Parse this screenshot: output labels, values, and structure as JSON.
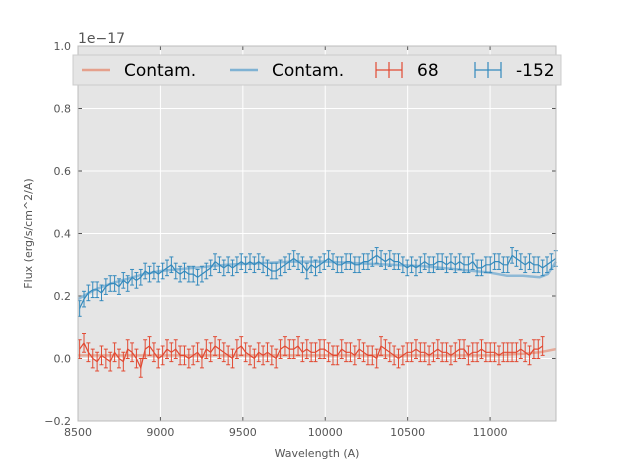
{
  "chart_data": {
    "type": "line",
    "title": "",
    "xlabel": "Wavelength (A)",
    "ylabel": "Flux (erg/s/cm^2/A)",
    "y_offset_label": "1e−17",
    "xlim": [
      8500,
      11400
    ],
    "ylim": [
      -0.2,
      1.0
    ],
    "xticks": [
      8500,
      9000,
      9500,
      10000,
      10500,
      11000
    ],
    "xtick_labels": [
      "8500",
      "9000",
      "9500",
      "10000",
      "10500",
      "11000"
    ],
    "yticks": [
      -0.2,
      0.0,
      0.2,
      0.4,
      0.6,
      0.8,
      1.0
    ],
    "ytick_labels": [
      "−0.2",
      "0.0",
      "0.2",
      "0.4",
      "0.6",
      "0.8",
      "1.0"
    ],
    "grid": true,
    "legend_position": "top",
    "legend": [
      {
        "label": "Contam.",
        "kind": "line",
        "color": "#e5a08c"
      },
      {
        "label": "Contam.",
        "kind": "line",
        "color": "#7fb2d3"
      },
      {
        "label": "68",
        "kind": "errorbar",
        "color": "#e24a33"
      },
      {
        "label": "-152",
        "kind": "errorbar",
        "color": "#348abd"
      }
    ],
    "contam_red": {
      "x": [
        8500,
        8700,
        9000,
        9500,
        10000,
        10500,
        11000,
        11200,
        11300,
        11400
      ],
      "y": [
        0.01,
        0.01,
        0.01,
        0.01,
        0.01,
        0.01,
        0.01,
        0.015,
        0.02,
        0.03
      ]
    },
    "contam_blue": {
      "x": [
        8500,
        8600,
        8700,
        8800,
        8900,
        9000,
        9200,
        9400,
        9600,
        9800,
        10000,
        10200,
        10400,
        10600,
        10800,
        11000,
        11100,
        11200,
        11300,
        11350,
        11400
      ],
      "y": [
        0.19,
        0.22,
        0.24,
        0.255,
        0.27,
        0.28,
        0.29,
        0.3,
        0.305,
        0.31,
        0.31,
        0.305,
        0.3,
        0.295,
        0.285,
        0.275,
        0.265,
        0.265,
        0.26,
        0.27,
        0.31
      ]
    },
    "series_red": {
      "name": "68",
      "x_start": 8510,
      "x_step": 26.5,
      "y": [
        0.03,
        0.05,
        0.02,
        0.0,
        -0.01,
        0.01,
        0.0,
        -0.01,
        0.02,
        0.0,
        -0.01,
        0.03,
        0.02,
        0.0,
        -0.03,
        0.03,
        0.04,
        0.02,
        0.0,
        0.01,
        0.03,
        0.02,
        0.03,
        0.01,
        0.01,
        0.0,
        0.01,
        0.02,
        0.0,
        0.03,
        0.02,
        0.04,
        0.03,
        0.02,
        0.01,
        0.0,
        0.03,
        0.04,
        0.02,
        0.01,
        0.0,
        0.02,
        0.01,
        0.02,
        0.01,
        0.0,
        0.03,
        0.04,
        0.03,
        0.03,
        0.04,
        0.02,
        0.03,
        0.02,
        0.02,
        0.03,
        0.03,
        0.02,
        0.01,
        0.01,
        0.03,
        0.02,
        0.02,
        0.01,
        0.03,
        0.02,
        0.01,
        0.01,
        0.0,
        0.04,
        0.03,
        0.02,
        0.01,
        0.0,
        0.01,
        0.02,
        0.02,
        0.03,
        0.02,
        0.02,
        0.01,
        0.02,
        0.03,
        0.02,
        0.02,
        0.01,
        0.02,
        0.03,
        0.03,
        0.01,
        0.02,
        0.02,
        0.03,
        0.02,
        0.02,
        0.02,
        0.01,
        0.02,
        0.02,
        0.02,
        0.02,
        0.03,
        0.02,
        0.01,
        0.03,
        0.03,
        0.04
      ],
      "err": 0.03
    },
    "series_blue": {
      "name": "-152",
      "x_start": 8510,
      "x_step": 26.5,
      "y": [
        0.16,
        0.19,
        0.21,
        0.22,
        0.22,
        0.21,
        0.23,
        0.24,
        0.24,
        0.23,
        0.25,
        0.24,
        0.26,
        0.25,
        0.26,
        0.28,
        0.27,
        0.28,
        0.27,
        0.28,
        0.29,
        0.3,
        0.28,
        0.27,
        0.28,
        0.27,
        0.27,
        0.26,
        0.27,
        0.28,
        0.29,
        0.31,
        0.3,
        0.29,
        0.3,
        0.29,
        0.3,
        0.31,
        0.3,
        0.31,
        0.3,
        0.31,
        0.3,
        0.29,
        0.28,
        0.28,
        0.29,
        0.3,
        0.31,
        0.32,
        0.31,
        0.3,
        0.28,
        0.3,
        0.29,
        0.3,
        0.31,
        0.32,
        0.31,
        0.3,
        0.3,
        0.31,
        0.31,
        0.3,
        0.3,
        0.31,
        0.31,
        0.32,
        0.33,
        0.32,
        0.31,
        0.32,
        0.31,
        0.31,
        0.3,
        0.29,
        0.3,
        0.29,
        0.3,
        0.31,
        0.3,
        0.3,
        0.31,
        0.31,
        0.3,
        0.31,
        0.3,
        0.31,
        0.3,
        0.3,
        0.31,
        0.29,
        0.29,
        0.3,
        0.3,
        0.31,
        0.31,
        0.3,
        0.3,
        0.33,
        0.32,
        0.31,
        0.3,
        0.31,
        0.3,
        0.3,
        0.29,
        0.3,
        0.31,
        0.32
      ],
      "err": 0.025
    }
  }
}
